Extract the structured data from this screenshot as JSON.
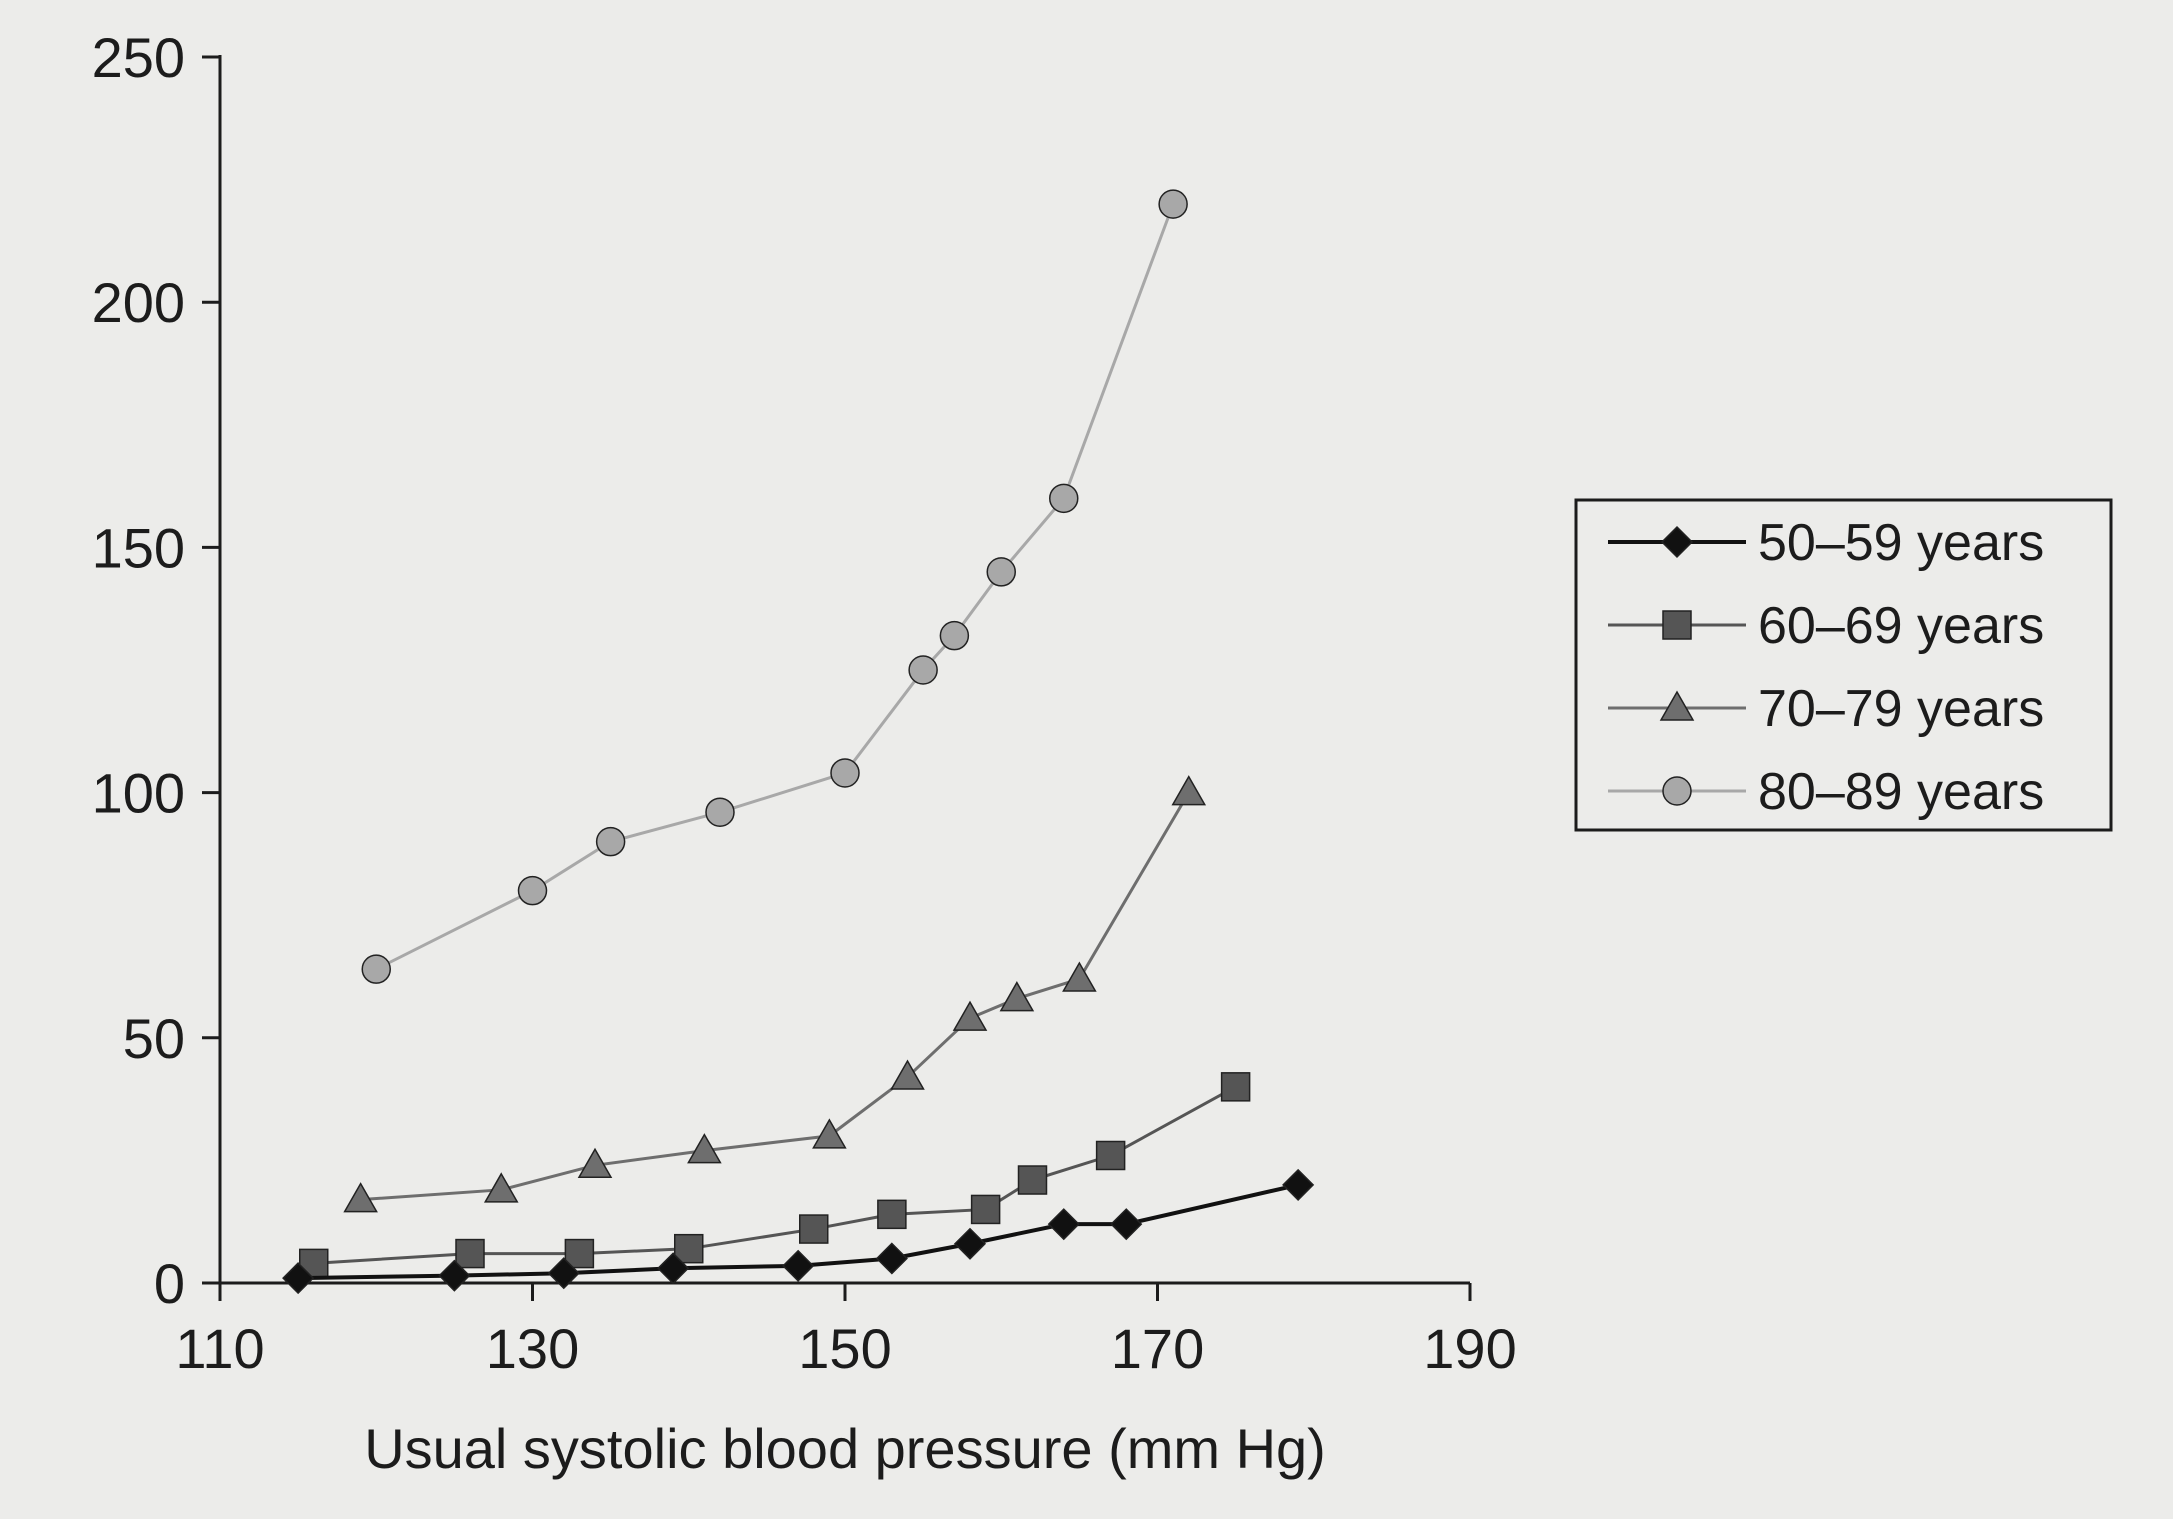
{
  "chart_data": {
    "type": "line",
    "title": "",
    "xlabel": "Usual systolic blood pressure (mm Hg)",
    "ylabel": "",
    "xlim": [
      110,
      190
    ],
    "ylim": [
      0,
      250
    ],
    "x_ticks": [
      "110",
      "130",
      "150",
      "170",
      "190"
    ],
    "y_ticks": [
      "0",
      "50",
      "100",
      "150",
      "200",
      "250"
    ],
    "grid": false,
    "legend_position": "right",
    "series": [
      {
        "name": "50–59 years",
        "marker": "diamond",
        "color": "#111111",
        "points": [
          [
            115,
            1
          ],
          [
            125,
            1.5
          ],
          [
            132,
            2
          ],
          [
            139,
            3
          ],
          [
            147,
            3.5
          ],
          [
            153,
            5
          ],
          [
            158,
            8
          ],
          [
            164,
            12
          ],
          [
            168,
            12
          ],
          [
            179,
            20
          ]
        ]
      },
      {
        "name": "60–69 years",
        "marker": "square",
        "color": "#555555",
        "points": [
          [
            116,
            4
          ],
          [
            126,
            6
          ],
          [
            133,
            6
          ],
          [
            140,
            7
          ],
          [
            148,
            11
          ],
          [
            153,
            14
          ],
          [
            159,
            15
          ],
          [
            162,
            21
          ],
          [
            167,
            26
          ],
          [
            175,
            40
          ]
        ]
      },
      {
        "name": "70–79 years",
        "marker": "triangle",
        "color": "#6e6e6e",
        "points": [
          [
            119,
            17
          ],
          [
            128,
            19
          ],
          [
            134,
            24
          ],
          [
            141,
            27
          ],
          [
            149,
            30
          ],
          [
            154,
            42
          ],
          [
            158,
            54
          ],
          [
            161,
            58
          ],
          [
            165,
            62
          ],
          [
            172,
            100
          ]
        ]
      },
      {
        "name": "80–89 years",
        "marker": "circle",
        "color": "#a8a8a8",
        "points": [
          [
            120,
            64
          ],
          [
            130,
            80
          ],
          [
            135,
            90
          ],
          [
            142,
            96
          ],
          [
            150,
            104
          ],
          [
            155,
            125
          ],
          [
            157,
            132
          ],
          [
            160,
            145
          ],
          [
            164,
            160
          ],
          [
            171,
            220
          ]
        ]
      }
    ]
  }
}
